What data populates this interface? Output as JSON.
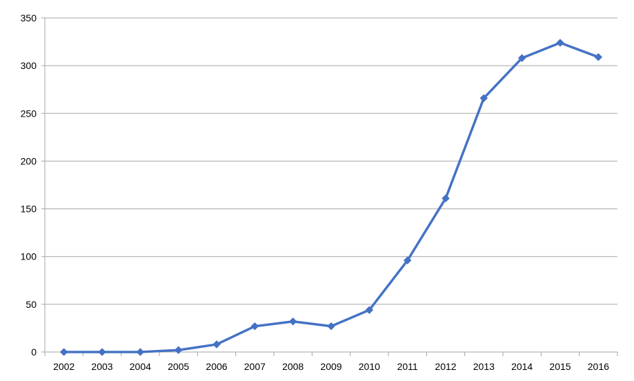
{
  "chart_data": {
    "type": "line",
    "title": "",
    "xlabel": "",
    "ylabel": "",
    "categories": [
      "2002",
      "2003",
      "2004",
      "2005",
      "2006",
      "2007",
      "2008",
      "2009",
      "2010",
      "2011",
      "2012",
      "2013",
      "2014",
      "2015",
      "2016"
    ],
    "series": [
      {
        "values": [
          0,
          0,
          0,
          2,
          8,
          27,
          32,
          27,
          44,
          96,
          161,
          266,
          308,
          324,
          309
        ],
        "color": "#4472C4",
        "marker": "diamond"
      }
    ],
    "ylim": [
      0,
      350
    ],
    "yticks": [
      0,
      50,
      100,
      150,
      200,
      250,
      300,
      350
    ],
    "grid": "horizontal",
    "legend": "none"
  }
}
